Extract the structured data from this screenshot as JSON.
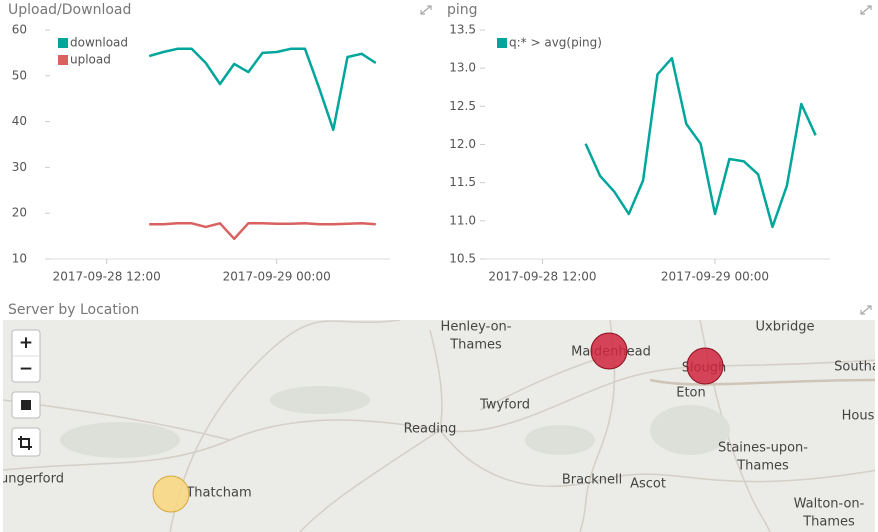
{
  "chart_data": [
    {
      "type": "line",
      "title": "Upload/Download",
      "x": [
        "2017-09-28 15:00",
        "2017-09-28 16:00",
        "2017-09-28 17:00",
        "2017-09-28 18:00",
        "2017-09-28 19:00",
        "2017-09-28 20:00",
        "2017-09-28 21:00",
        "2017-09-28 22:00",
        "2017-09-28 23:00",
        "2017-09-29 00:00",
        "2017-09-29 01:00",
        "2017-09-29 02:00",
        "2017-09-29 03:00",
        "2017-09-29 04:00",
        "2017-09-29 05:00",
        "2017-09-29 06:00",
        "2017-09-29 07:00"
      ],
      "xlim": [
        "2017-09-28 08:00",
        "2017-09-29 08:00"
      ],
      "xticks": [
        "2017-09-28 12:00",
        "2017-09-29 00:00"
      ],
      "ylim": [
        10,
        60
      ],
      "yticks": [
        60,
        50,
        40,
        30,
        20,
        10
      ],
      "series": [
        {
          "name": "download",
          "color": "#00a69b",
          "values": [
            54.3,
            55.2,
            55.9,
            55.9,
            52.8,
            48.2,
            52.6,
            50.8,
            55.0,
            55.2,
            55.9,
            55.9,
            47.3,
            38.2,
            54.1,
            54.8,
            52.8
          ]
        },
        {
          "name": "upload",
          "color": "#d9615f",
          "values": [
            17.6,
            17.6,
            17.8,
            17.8,
            17.0,
            17.8,
            14.4,
            17.8,
            17.8,
            17.7,
            17.7,
            17.8,
            17.6,
            17.6,
            17.7,
            17.8,
            17.6
          ]
        }
      ]
    },
    {
      "type": "line",
      "title": "ping",
      "x": [
        "2017-09-28 15:00",
        "2017-09-28 16:00",
        "2017-09-28 17:00",
        "2017-09-28 18:00",
        "2017-09-28 19:00",
        "2017-09-28 20:00",
        "2017-09-28 21:00",
        "2017-09-28 22:00",
        "2017-09-28 23:00",
        "2017-09-29 00:00",
        "2017-09-29 01:00",
        "2017-09-29 02:00",
        "2017-09-29 03:00",
        "2017-09-29 04:00",
        "2017-09-29 05:00",
        "2017-09-29 06:00",
        "2017-09-29 07:00"
      ],
      "xlim": [
        "2017-09-28 08:00",
        "2017-09-29 08:00"
      ],
      "xticks": [
        "2017-09-28 12:00",
        "2017-09-29 00:00"
      ],
      "ylim": [
        10.5,
        13.5
      ],
      "yticks": [
        13.5,
        {
          "value": 13,
          "label": "13.0"
        },
        12.5,
        {
          "value": 12,
          "label": "12.0"
        },
        11.5,
        {
          "value": 11,
          "label": "11.0"
        },
        10.5
      ],
      "series": [
        {
          "name": "q:* > avg(ping)",
          "color": "#00a69b",
          "values": [
            12.01,
            11.59,
            11.38,
            11.09,
            11.53,
            12.92,
            13.13,
            12.27,
            12.01,
            11.09,
            11.81,
            11.78,
            11.61,
            10.92,
            11.46,
            12.53,
            12.12
          ]
        }
      ]
    }
  ],
  "map": {
    "title": "Server by Location",
    "zoom_in": "+",
    "zoom_out": "−",
    "places": [
      [
        "Henley-on-",
        "Thames"
      ],
      [
        "Maidenhead"
      ],
      [
        "Uxbridge"
      ],
      [
        "Slough"
      ],
      [
        "Southa"
      ],
      [
        "Eton"
      ],
      [
        "Twyford"
      ],
      [
        "Reading"
      ],
      [
        "Hous"
      ],
      [
        "Staines-upon-",
        "Thames"
      ],
      [
        "ungerford"
      ],
      [
        "Thatcham"
      ],
      [
        "Bracknell"
      ],
      [
        "Ascot"
      ],
      [
        "Walton-on-",
        "Thames"
      ]
    ]
  }
}
